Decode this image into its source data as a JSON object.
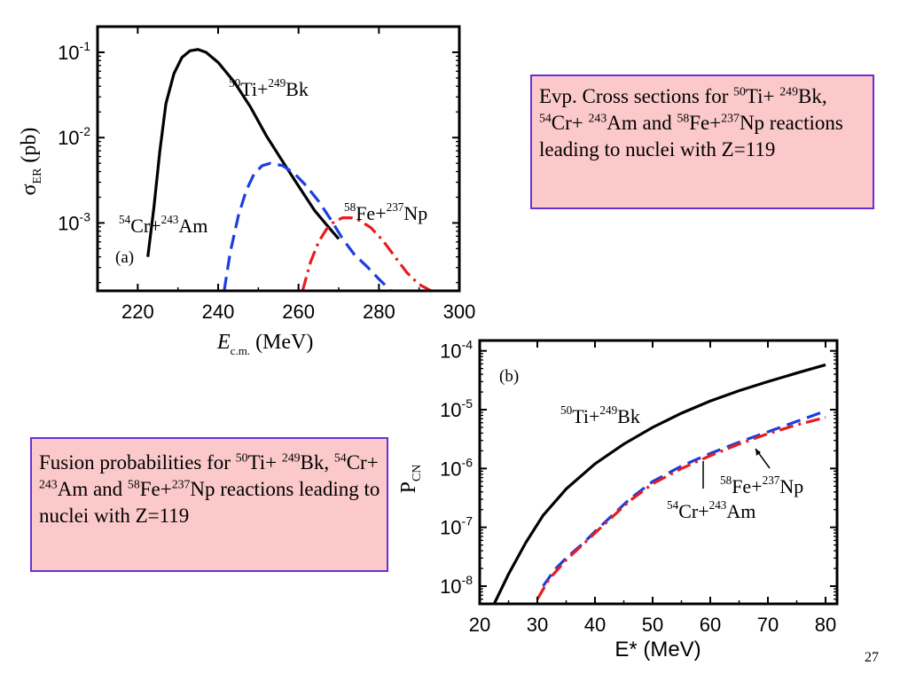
{
  "slide_number": "27",
  "note_a": {
    "parts": [
      {
        "t": " Evp. Cross sections  for "
      },
      {
        "s": "50"
      },
      {
        "t": "Ti+ "
      },
      {
        "s": "249"
      },
      {
        "t": "Bk, "
      },
      {
        "s": "54"
      },
      {
        "t": "Cr+ "
      },
      {
        "s": "243"
      },
      {
        "t": "Am and "
      },
      {
        "s": "58"
      },
      {
        "t": "Fe+"
      },
      {
        "s": "237"
      },
      {
        "t": "Np reactions  leading to nuclei with Z=119"
      }
    ]
  },
  "note_b": {
    "parts": [
      {
        "t": "Fusion probabilities  for "
      },
      {
        "s": "50"
      },
      {
        "t": "Ti+ "
      },
      {
        "s": "249"
      },
      {
        "t": "Bk, "
      },
      {
        "s": "54"
      },
      {
        "t": "Cr+ "
      },
      {
        "s": "243"
      },
      {
        "t": "Am and "
      },
      {
        "s": "58"
      },
      {
        "t": "Fe+"
      },
      {
        "s": "237"
      },
      {
        "t": "Np reactions  leading to nuclei with Z=119"
      }
    ]
  },
  "chart_data": [
    {
      "type": "line",
      "panel_label": "(a)",
      "ylabel": {
        "base": "σ",
        "sub": "ER",
        "rest": " (pb)"
      },
      "xlabel": {
        "base": "E",
        "sub": "c.m.",
        "rest": " (MeV)"
      },
      "xlim": [
        210,
        300
      ],
      "ylim": [
        0.00016,
        0.2
      ],
      "yscale": "log",
      "xticks": [
        220,
        240,
        260,
        280,
        300
      ],
      "ytick_labels": [
        {
          "v": 0.1,
          "base": "10",
          "exp": "-1"
        },
        {
          "v": 0.01,
          "base": "10",
          "exp": "-2"
        },
        {
          "v": 0.001,
          "base": "10",
          "exp": "-3"
        }
      ],
      "series": [
        {
          "name": "50Ti+249Bk",
          "color": "#000000",
          "dash": "solid",
          "label": {
            "a": "50",
            "b": "Ti+",
            "c": "249",
            "d": "Bk"
          },
          "points": [
            [
              222.5,
              0.0004
            ],
            [
              224,
              0.0015
            ],
            [
              225.5,
              0.007
            ],
            [
              227,
              0.025
            ],
            [
              229,
              0.056
            ],
            [
              231,
              0.087
            ],
            [
              233,
              0.104
            ],
            [
              235,
              0.108
            ],
            [
              237,
              0.1
            ],
            [
              240,
              0.076
            ],
            [
              244,
              0.045
            ],
            [
              248,
              0.023
            ],
            [
              252,
              0.0105
            ],
            [
              256,
              0.0053
            ],
            [
              260,
              0.0027
            ],
            [
              264,
              0.0014
            ],
            [
              267,
              0.00095
            ],
            [
              270,
              0.00065
            ]
          ]
        },
        {
          "name": "54Cr+243Am",
          "color": "#1a3ee0",
          "dash": "long",
          "label": {
            "a": "54",
            "b": "Cr+",
            "c": "243",
            "d": "Am"
          },
          "points": [
            [
              241.5,
              0.00016
            ],
            [
              243,
              0.00045
            ],
            [
              245,
              0.0012
            ],
            [
              247,
              0.0024
            ],
            [
              249,
              0.0038
            ],
            [
              251,
              0.0047
            ],
            [
              253,
              0.005
            ],
            [
              256,
              0.0047
            ],
            [
              259,
              0.0038
            ],
            [
              262,
              0.0027
            ],
            [
              265,
              0.0018
            ],
            [
              268,
              0.0011
            ],
            [
              271,
              0.00065
            ],
            [
              274,
              0.00042
            ],
            [
              277,
              0.00031
            ],
            [
              280,
              0.00022
            ],
            [
              283,
              0.00016
            ]
          ]
        },
        {
          "name": "58Fe+237Np",
          "color": "#e81c1c",
          "dash": "dashdot",
          "label": {
            "a": "58",
            "b": "Fe+",
            "c": "237",
            "d": "Np"
          },
          "points": [
            [
              261,
              0.00016
            ],
            [
              263,
              0.00035
            ],
            [
              265,
              0.0006
            ],
            [
              267,
              0.00085
            ],
            [
              269,
              0.00105
            ],
            [
              271,
              0.00115
            ],
            [
              273,
              0.00115
            ],
            [
              275,
              0.00108
            ],
            [
              278,
              0.00088
            ],
            [
              281,
              0.00062
            ],
            [
              284,
              0.0004
            ],
            [
              287,
              0.00026
            ],
            [
              290,
              0.00019
            ],
            [
              293,
              0.00016
            ]
          ]
        }
      ]
    },
    {
      "type": "line",
      "panel_label": "(b)",
      "ylabel": {
        "base": "P",
        "sub": "CN",
        "rest": ""
      },
      "xlabel": {
        "base": "E* (MeV)",
        "sub": "",
        "rest": ""
      },
      "xlim": [
        20,
        82
      ],
      "ylim": [
        5e-09,
        0.00015
      ],
      "yscale": "log",
      "xticks": [
        20,
        30,
        40,
        50,
        60,
        70,
        80
      ],
      "ytick_labels": [
        {
          "v": 0.0001,
          "base": "10",
          "exp": "-4"
        },
        {
          "v": 1e-05,
          "base": "10",
          "exp": "-5"
        },
        {
          "v": 1e-06,
          "base": "10",
          "exp": "-6"
        },
        {
          "v": 1e-07,
          "base": "10",
          "exp": "-7"
        },
        {
          "v": 1e-08,
          "base": "10",
          "exp": "-8"
        }
      ],
      "series": [
        {
          "name": "50Ti+249Bk",
          "color": "#000000",
          "dash": "solid",
          "label": {
            "a": "50",
            "b": "Ti+",
            "c": "249",
            "d": "Bk"
          },
          "points": [
            [
              22.5,
              5e-09
            ],
            [
              25,
              1.6e-08
            ],
            [
              28,
              5.5e-08
            ],
            [
              31,
              1.6e-07
            ],
            [
              35,
              4.5e-07
            ],
            [
              40,
              1.2e-06
            ],
            [
              45,
              2.6e-06
            ],
            [
              50,
              5e-06
            ],
            [
              55,
              8.7e-06
            ],
            [
              60,
              1.4e-05
            ],
            [
              65,
              2.1e-05
            ],
            [
              70,
              3e-05
            ],
            [
              75,
              4.2e-05
            ],
            [
              80,
              5.8e-05
            ]
          ]
        },
        {
          "name": "54Cr+243Am",
          "color": "#1a3ee0",
          "dash": "long",
          "label": {
            "a": "54",
            "b": "Cr+",
            "c": "243",
            "d": "Am"
          },
          "points": [
            [
              31,
              1e-08
            ],
            [
              33,
              1.9e-08
            ],
            [
              35,
              3e-08
            ],
            [
              38,
              5.4e-08
            ],
            [
              40,
              8.5e-08
            ],
            [
              43,
              1.6e-07
            ],
            [
              46,
              3e-07
            ],
            [
              50,
              6e-07
            ],
            [
              55,
              1.1e-06
            ],
            [
              60,
              1.8e-06
            ],
            [
              65,
              2.8e-06
            ],
            [
              70,
              4.2e-06
            ],
            [
              75,
              6.3e-06
            ],
            [
              80,
              9.5e-06
            ]
          ]
        },
        {
          "name": "58Fe+237Np",
          "color": "#e81c1c",
          "dash": "dashdot",
          "label": {
            "a": "58",
            "b": "Fe+",
            "c": "237",
            "d": "Np"
          },
          "points": [
            [
              30,
              6e-09
            ],
            [
              32,
              1.3e-08
            ],
            [
              35,
              2.8e-08
            ],
            [
              38,
              5.2e-08
            ],
            [
              40,
              8e-08
            ],
            [
              43,
              1.5e-07
            ],
            [
              46,
              2.8e-07
            ],
            [
              50,
              5.5e-07
            ],
            [
              55,
              1e-06
            ],
            [
              60,
              1.65e-06
            ],
            [
              65,
              2.6e-06
            ],
            [
              70,
              3.9e-06
            ],
            [
              75,
              5.5e-06
            ],
            [
              80,
              7.4e-06
            ]
          ]
        }
      ]
    }
  ]
}
